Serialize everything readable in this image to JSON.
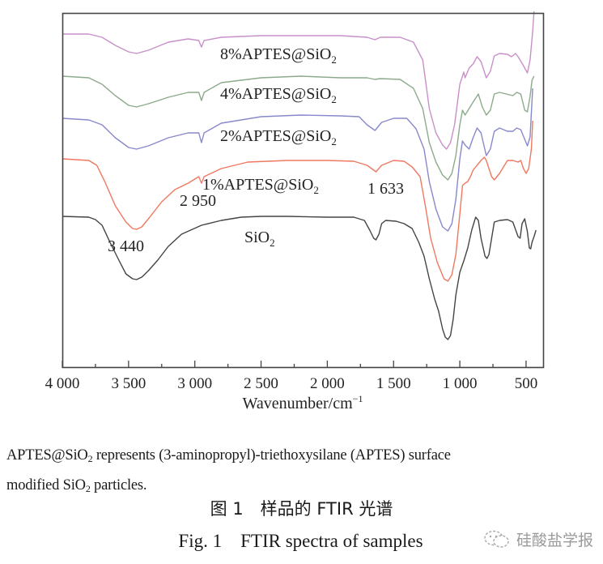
{
  "chart_data": {
    "type": "line",
    "title": "",
    "xlabel": "Wavenumber/cm⁻¹",
    "xlabel_text": "Wavenumber/cm",
    "xlabel_sup": "−1",
    "ylabel": "",
    "xlim": [
      4000,
      365
    ],
    "x_reversed": true,
    "grid": false,
    "legend": "inline labels",
    "x_ticks": [
      4000,
      3500,
      3000,
      2500,
      2000,
      1500,
      1000,
      500
    ],
    "x_tick_labels": [
      "4 000",
      "3 500",
      "3 000",
      "2 500",
      "2 000",
      "1 500",
      "1 000",
      "500"
    ],
    "y_units": "relative transmittance (arbitrary, pixel height above axis)",
    "annotations": [
      {
        "text": "3 440",
        "wavenumber": 3440
      },
      {
        "text": "2 950",
        "wavenumber": 2950
      },
      {
        "text": "1 633",
        "wavenumber": 1633
      }
    ],
    "series": [
      {
        "name": "8%APTES@SiO2",
        "label_main": "8%APTES@SiO",
        "label_sub": "2",
        "color": "#c890c8",
        "points": [
          [
            4000,
            412
          ],
          [
            3800,
            412
          ],
          [
            3700,
            408
          ],
          [
            3600,
            398
          ],
          [
            3500,
            390
          ],
          [
            3440,
            388
          ],
          [
            3350,
            392
          ],
          [
            3200,
            402
          ],
          [
            3050,
            406
          ],
          [
            2970,
            404
          ],
          [
            2950,
            396
          ],
          [
            2930,
            404
          ],
          [
            2800,
            408
          ],
          [
            2500,
            410
          ],
          [
            2200,
            410
          ],
          [
            1900,
            410
          ],
          [
            1700,
            408
          ],
          [
            1640,
            405
          ],
          [
            1600,
            408
          ],
          [
            1450,
            408
          ],
          [
            1350,
            402
          ],
          [
            1280,
            380
          ],
          [
            1230,
            320
          ],
          [
            1180,
            290
          ],
          [
            1130,
            275
          ],
          [
            1100,
            270
          ],
          [
            1070,
            278
          ],
          [
            1040,
            300
          ],
          [
            1000,
            350
          ],
          [
            970,
            365
          ],
          [
            960,
            358
          ],
          [
            930,
            370
          ],
          [
            900,
            375
          ],
          [
            870,
            384
          ],
          [
            840,
            378
          ],
          [
            800,
            358
          ],
          [
            770,
            366
          ],
          [
            740,
            385
          ],
          [
            700,
            388
          ],
          [
            640,
            387
          ],
          [
            610,
            384
          ],
          [
            580,
            388
          ],
          [
            560,
            384
          ],
          [
            520,
            373
          ],
          [
            490,
            364
          ],
          [
            470,
            380
          ],
          [
            450,
            415
          ],
          [
            440,
            440
          ]
        ]
      },
      {
        "name": "4%APTES@SiO2",
        "label_main": "4%APTES@SiO",
        "label_sub": "2",
        "color": "#8caa8c",
        "points": [
          [
            4000,
            360
          ],
          [
            3800,
            358
          ],
          [
            3700,
            350
          ],
          [
            3600,
            336
          ],
          [
            3500,
            324
          ],
          [
            3440,
            322
          ],
          [
            3350,
            326
          ],
          [
            3200,
            334
          ],
          [
            3050,
            340
          ],
          [
            2970,
            340
          ],
          [
            2950,
            330
          ],
          [
            2930,
            340
          ],
          [
            2800,
            352
          ],
          [
            2500,
            358
          ],
          [
            2200,
            360
          ],
          [
            1900,
            358
          ],
          [
            1700,
            358
          ],
          [
            1640,
            356
          ],
          [
            1600,
            357
          ],
          [
            1450,
            356
          ],
          [
            1350,
            345
          ],
          [
            1280,
            320
          ],
          [
            1230,
            278
          ],
          [
            1180,
            254
          ],
          [
            1130,
            238
          ],
          [
            1090,
            232
          ],
          [
            1060,
            240
          ],
          [
            1030,
            262
          ],
          [
            1000,
            300
          ],
          [
            980,
            318
          ],
          [
            960,
            312
          ],
          [
            930,
            320
          ],
          [
            900,
            328
          ],
          [
            860,
            338
          ],
          [
            830,
            322
          ],
          [
            800,
            312
          ],
          [
            770,
            318
          ],
          [
            740,
            338
          ],
          [
            700,
            340
          ],
          [
            650,
            338
          ],
          [
            600,
            336
          ],
          [
            570,
            340
          ],
          [
            540,
            338
          ],
          [
            510,
            318
          ],
          [
            490,
            316
          ],
          [
            470,
            335
          ],
          [
            455,
            355
          ],
          [
            440,
            360
          ]
        ]
      },
      {
        "name": "2%APTES@SiO2",
        "label_main": "2%APTES@SiO",
        "label_sub": "2",
        "color": "#8888cc",
        "points": [
          [
            4000,
            308
          ],
          [
            3800,
            306
          ],
          [
            3700,
            300
          ],
          [
            3600,
            284
          ],
          [
            3500,
            272
          ],
          [
            3440,
            270
          ],
          [
            3350,
            274
          ],
          [
            3200,
            284
          ],
          [
            3050,
            290
          ],
          [
            2970,
            290
          ],
          [
            2950,
            278
          ],
          [
            2930,
            290
          ],
          [
            2800,
            302
          ],
          [
            2500,
            310
          ],
          [
            2200,
            312
          ],
          [
            1900,
            311
          ],
          [
            1760,
            310
          ],
          [
            1700,
            300
          ],
          [
            1640,
            293
          ],
          [
            1590,
            303
          ],
          [
            1500,
            308
          ],
          [
            1400,
            308
          ],
          [
            1330,
            295
          ],
          [
            1270,
            270
          ],
          [
            1230,
            230
          ],
          [
            1180,
            196
          ],
          [
            1130,
            174
          ],
          [
            1090,
            169
          ],
          [
            1060,
            178
          ],
          [
            1030,
            208
          ],
          [
            1000,
            258
          ],
          [
            980,
            280
          ],
          [
            960,
            275
          ],
          [
            930,
            270
          ],
          [
            900,
            284
          ],
          [
            870,
            296
          ],
          [
            840,
            290
          ],
          [
            800,
            262
          ],
          [
            770,
            270
          ],
          [
            740,
            292
          ],
          [
            700,
            296
          ],
          [
            640,
            292
          ],
          [
            600,
            292
          ],
          [
            570,
            296
          ],
          [
            540,
            294
          ],
          [
            510,
            282
          ],
          [
            490,
            274
          ],
          [
            470,
            285
          ],
          [
            450,
            345
          ]
        ]
      },
      {
        "name": "1%APTES@SiO2",
        "label_main": "1%APTES@SiO",
        "label_sub": "2",
        "color": "#f07860",
        "points": [
          [
            4000,
            258
          ],
          [
            3800,
            256
          ],
          [
            3740,
            250
          ],
          [
            3680,
            230
          ],
          [
            3600,
            200
          ],
          [
            3520,
            180
          ],
          [
            3470,
            172
          ],
          [
            3440,
            171
          ],
          [
            3400,
            174
          ],
          [
            3340,
            186
          ],
          [
            3250,
            205
          ],
          [
            3150,
            220
          ],
          [
            3050,
            228
          ],
          [
            2970,
            236
          ],
          [
            2950,
            228
          ],
          [
            2930,
            236
          ],
          [
            2800,
            246
          ],
          [
            2600,
            254
          ],
          [
            2300,
            256
          ],
          [
            2000,
            256
          ],
          [
            1800,
            255
          ],
          [
            1700,
            250
          ],
          [
            1633,
            242
          ],
          [
            1590,
            250
          ],
          [
            1500,
            256
          ],
          [
            1420,
            255
          ],
          [
            1360,
            248
          ],
          [
            1300,
            236
          ],
          [
            1260,
            200
          ],
          [
            1220,
            160
          ],
          [
            1170,
            130
          ],
          [
            1120,
            110
          ],
          [
            1090,
            107
          ],
          [
            1060,
            115
          ],
          [
            1030,
            140
          ],
          [
            1000,
            190
          ],
          [
            980,
            225
          ],
          [
            960,
            228
          ],
          [
            940,
            230
          ],
          [
            920,
            236
          ],
          [
            900,
            244
          ],
          [
            880,
            248
          ],
          [
            860,
            252
          ],
          [
            840,
            256
          ],
          [
            815,
            260
          ],
          [
            800,
            256
          ],
          [
            780,
            246
          ],
          [
            760,
            236
          ],
          [
            740,
            232
          ],
          [
            700,
            240
          ],
          [
            640,
            256
          ],
          [
            600,
            256
          ],
          [
            560,
            254
          ],
          [
            540,
            256
          ],
          [
            520,
            246
          ],
          [
            500,
            240
          ],
          [
            480,
            246
          ],
          [
            460,
            270
          ],
          [
            450,
            305
          ]
        ]
      },
      {
        "name": "SiO2",
        "label_main": "SiO",
        "label_sub": "2",
        "color": "#444444",
        "points": [
          [
            4000,
            187
          ],
          [
            3800,
            186
          ],
          [
            3750,
            183
          ],
          [
            3700,
            176
          ],
          [
            3640,
            155
          ],
          [
            3580,
            135
          ],
          [
            3520,
            116
          ],
          [
            3470,
            110
          ],
          [
            3440,
            109
          ],
          [
            3400,
            112
          ],
          [
            3350,
            120
          ],
          [
            3280,
            133
          ],
          [
            3200,
            150
          ],
          [
            3100,
            165
          ],
          [
            2950,
            176
          ],
          [
            2800,
            182
          ],
          [
            2650,
            186
          ],
          [
            2500,
            187
          ],
          [
            2300,
            187
          ],
          [
            2000,
            186
          ],
          [
            1800,
            186
          ],
          [
            1720,
            182
          ],
          [
            1680,
            170
          ],
          [
            1650,
            160
          ],
          [
            1633,
            158
          ],
          [
            1610,
            165
          ],
          [
            1590,
            178
          ],
          [
            1560,
            182
          ],
          [
            1480,
            181
          ],
          [
            1420,
            178
          ],
          [
            1360,
            172
          ],
          [
            1310,
            155
          ],
          [
            1270,
            138
          ],
          [
            1230,
            110
          ],
          [
            1190,
            85
          ],
          [
            1160,
            70
          ],
          [
            1130,
            48
          ],
          [
            1110,
            38
          ],
          [
            1090,
            35
          ],
          [
            1070,
            40
          ],
          [
            1050,
            60
          ],
          [
            1030,
            90
          ],
          [
            1000,
            118
          ],
          [
            970,
            132
          ],
          [
            940,
            148
          ],
          [
            910,
            170
          ],
          [
            880,
            186
          ],
          [
            860,
            182
          ],
          [
            840,
            160
          ],
          [
            810,
            138
          ],
          [
            795,
            135
          ],
          [
            780,
            140
          ],
          [
            760,
            160
          ],
          [
            740,
            180
          ],
          [
            700,
            182
          ],
          [
            640,
            183
          ],
          [
            600,
            180
          ],
          [
            560,
            162
          ],
          [
            545,
            160
          ],
          [
            530,
            178
          ],
          [
            510,
            184
          ],
          [
            490,
            168
          ],
          [
            475,
            148
          ],
          [
            465,
            147
          ],
          [
            455,
            155
          ],
          [
            440,
            162
          ],
          [
            425,
            170
          ]
        ]
      }
    ]
  },
  "figure": {
    "note_line1_a": "APTES@SiO",
    "note_line1_sub": "2",
    "note_line1_b": " represents (3-aminopropyl)-triethoxysilane (APTES) surface",
    "note_line2_a": "modified SiO",
    "note_line2_sub": "2",
    "note_line2_b": " particles.",
    "caption_cn": "图 1　样品的 FTIR 光谱",
    "caption_en": "Fig. 1　FTIR spectra of samples"
  },
  "watermark": {
    "icon": "wechat-icon",
    "text": "硅酸盐学报"
  }
}
